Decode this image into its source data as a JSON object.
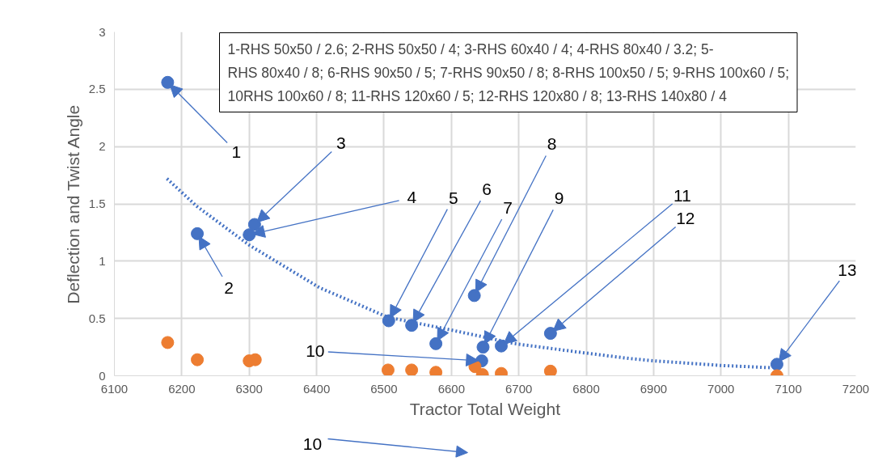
{
  "chart_data": {
    "type": "scatter",
    "xlabel": "Tractor Total Weight",
    "ylabel": "Deflection and Twist Angle",
    "xlim": [
      6100,
      7200
    ],
    "xticks": [
      6100,
      6200,
      6300,
      6400,
      6500,
      6600,
      6700,
      6800,
      6900,
      7000,
      7100,
      7200
    ],
    "ylim": [
      0,
      3
    ],
    "yticks": [
      0,
      0.5,
      1,
      1.5,
      2,
      2.5,
      3
    ],
    "grid": true,
    "marker": "circle",
    "series": [
      {
        "color": "#4472c4",
        "x": [
          6179,
          6223,
          6308,
          6300,
          6507,
          6541,
          6577,
          6634,
          6647,
          6645,
          6674,
          6747,
          7083
        ],
        "values": [
          2.56,
          1.24,
          1.32,
          1.23,
          0.48,
          0.44,
          0.28,
          0.7,
          0.25,
          0.13,
          0.26,
          0.37,
          0.1
        ]
      },
      {
        "color": "#ed7d31",
        "x": [
          6179,
          6223,
          6300,
          6309,
          6506,
          6541,
          6577,
          6635,
          6646,
          6674,
          6747,
          7083
        ],
        "values": [
          0.29,
          0.14,
          0.13,
          0.14,
          0.05,
          0.05,
          0.03,
          0.08,
          0.01,
          0.02,
          0.04,
          0.0
        ]
      },
      {
        "type": "line",
        "line_style": "dotted",
        "marker": "none",
        "color": "#4472c4",
        "x": [
          6178,
          6222,
          6300,
          6404,
          6506,
          6599,
          6694,
          6797,
          6865,
          6901,
          7000,
          7076
        ],
        "values": [
          1.72,
          1.48,
          1.14,
          0.77,
          0.51,
          0.4,
          0.28,
          0.2,
          0.15,
          0.13,
          0.09,
          0.07
        ]
      }
    ],
    "annotations": [
      "10",
      {
        "text": "1",
        "x": 6179,
        "y": 2.56
      },
      {
        "text": "2",
        "x": 6223,
        "y": 1.24
      },
      {
        "text": "3",
        "x": 6308,
        "y": 1.32
      },
      {
        "text": "4",
        "x": 6300,
        "y": 1.23
      },
      {
        "text": "5",
        "x": 6507,
        "y": 0.48
      },
      {
        "text": "6",
        "x": 6541,
        "y": 0.44
      },
      {
        "text": "7",
        "x": 6577,
        "y": 0.28
      },
      {
        "text": "8",
        "x": 6634,
        "y": 0.7
      },
      {
        "text": "9",
        "x": 6647,
        "y": 0.25
      },
      {
        "text": "10",
        "x": 6645,
        "y": 0.13
      },
      {
        "text": "11",
        "x": 6674,
        "y": 0.26
      },
      {
        "text": "12",
        "x": 6747,
        "y": 0.37
      },
      {
        "text": "13",
        "x": 7083,
        "y": 0.1
      },
      "1-RHS 50x50 / 2.6; 2-RHS 50x50 / 4; 3-RHS 60x40 / 4; 4-RHS 80x40 / 3.2; 5-\nRHS 80x40 / 8; 6-RHS 90x50 / 5; 7-RHS 90x50 / 8; 8-RHS 100x50 / 5; 9-RHS 100x60 / 5;\n10RHS 100x60 / 8; 11-RHS 120x60 / 5; 12-RHS 120x80 / 8; 13-RHS 140x80 / 4"
    ]
  }
}
